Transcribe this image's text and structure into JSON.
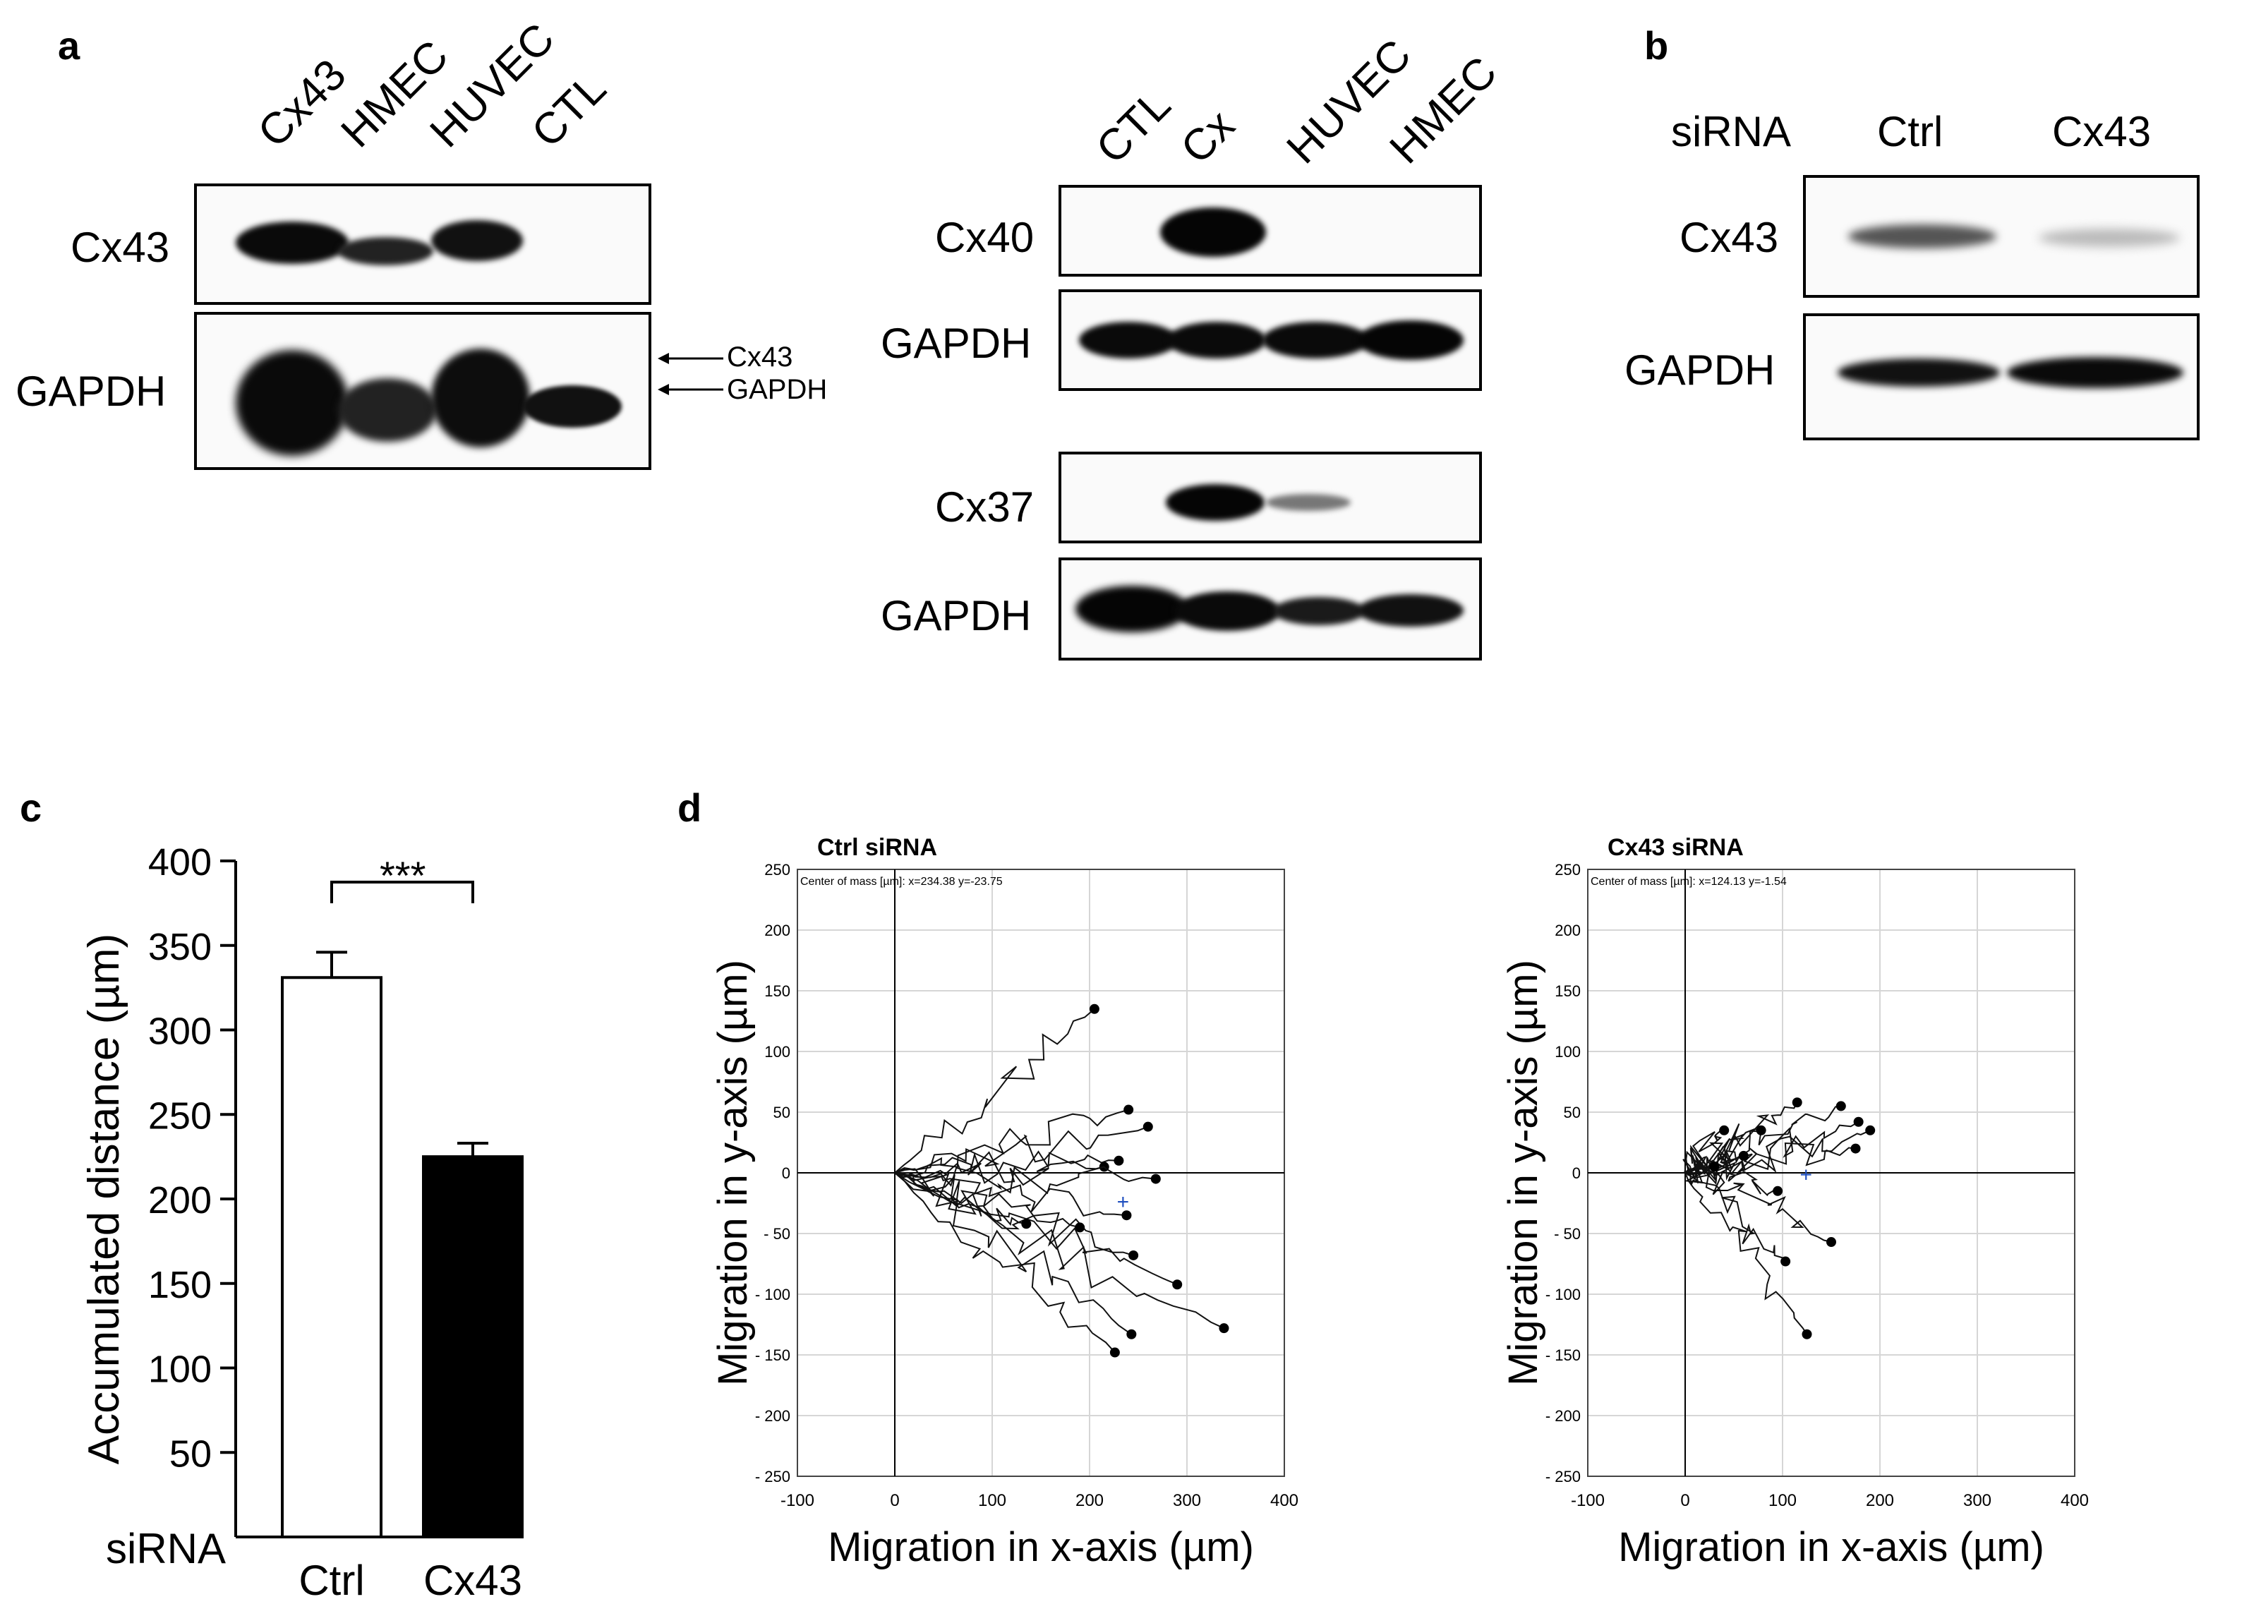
{
  "panel_a": {
    "label": "a",
    "blot1": {
      "lanes": [
        "Cx43",
        "HMEC",
        "HUVEC",
        "CTL"
      ],
      "row1": "Cx43",
      "row2": "GAPDH",
      "arrows": [
        "Cx43",
        "GAPDH"
      ]
    },
    "blot2": {
      "lanes": [
        "CTL",
        "Cx",
        "HUVEC",
        "HMEC"
      ],
      "rows": [
        "Cx40",
        "GAPDH",
        "Cx37",
        "GAPDH"
      ]
    }
  },
  "panel_b": {
    "label": "b",
    "header": "siRNA",
    "lanes": [
      "Ctrl",
      "Cx43"
    ],
    "rows": [
      "Cx43",
      "GAPDH"
    ]
  },
  "panel_c": {
    "label": "c",
    "significance": "***",
    "xlabel_prefix": "siRNA"
  },
  "panel_d": {
    "label": "d",
    "plots": [
      {
        "title": "Ctrl siRNA",
        "center_text": "Center of mass [µm]: x=234.38 y=-23.75"
      },
      {
        "title": "Cx43 siRNA",
        "center_text": "Center of mass [µm]: x=124.13 y=-1.54"
      }
    ]
  },
  "chart_data": [
    {
      "type": "bar",
      "categories": [
        "Ctrl",
        "Cx43"
      ],
      "values": [
        331,
        225
      ],
      "errors": [
        15,
        8
      ],
      "fills": [
        "#ffffff",
        "#000000"
      ],
      "ylabel": "Accumulated distance (µm)",
      "ylim": [
        0,
        400
      ],
      "yticks": [
        50,
        100,
        150,
        200,
        250,
        300,
        350,
        400
      ]
    },
    {
      "type": "line",
      "title": "Ctrl siRNA",
      "xlabel": "Migration in x-axis (µm)",
      "ylabel": "Migration in y-axis (µm)",
      "xlim": [
        -100,
        400
      ],
      "ylim": [
        -250,
        250
      ],
      "xticks": [
        -100,
        0,
        100,
        200,
        300,
        400
      ],
      "yticks": [
        250,
        200,
        150,
        100,
        50,
        0,
        -50,
        -100,
        -150,
        -200,
        -250
      ],
      "center_of_mass": [
        234.38,
        -23.75
      ],
      "endpoints": [
        [
          205,
          135
        ],
        [
          240,
          52
        ],
        [
          260,
          38
        ],
        [
          230,
          10
        ],
        [
          215,
          5
        ],
        [
          268,
          -5
        ],
        [
          238,
          -35
        ],
        [
          245,
          -68
        ],
        [
          190,
          -45
        ],
        [
          290,
          -92
        ],
        [
          338,
          -128
        ],
        [
          243,
          -133
        ],
        [
          226,
          -148
        ],
        [
          135,
          -42
        ]
      ]
    },
    {
      "type": "line",
      "title": "Cx43 siRNA",
      "xlabel": "Migration in x-axis (µm)",
      "ylabel": "Migration in y-axis (µm)",
      "xlim": [
        -100,
        400
      ],
      "ylim": [
        -250,
        250
      ],
      "xticks": [
        -100,
        0,
        100,
        200,
        300,
        400
      ],
      "yticks": [
        250,
        200,
        150,
        100,
        50,
        0,
        -50,
        -100,
        -150,
        -200,
        -250
      ],
      "center_of_mass": [
        124.13,
        -1.54
      ],
      "endpoints": [
        [
          115,
          58
        ],
        [
          160,
          55
        ],
        [
          178,
          42
        ],
        [
          190,
          35
        ],
        [
          175,
          20
        ],
        [
          78,
          35
        ],
        [
          40,
          35
        ],
        [
          60,
          14
        ],
        [
          30,
          5
        ],
        [
          95,
          -15
        ],
        [
          150,
          -57
        ],
        [
          103,
          -73
        ],
        [
          125,
          -133
        ]
      ]
    }
  ]
}
